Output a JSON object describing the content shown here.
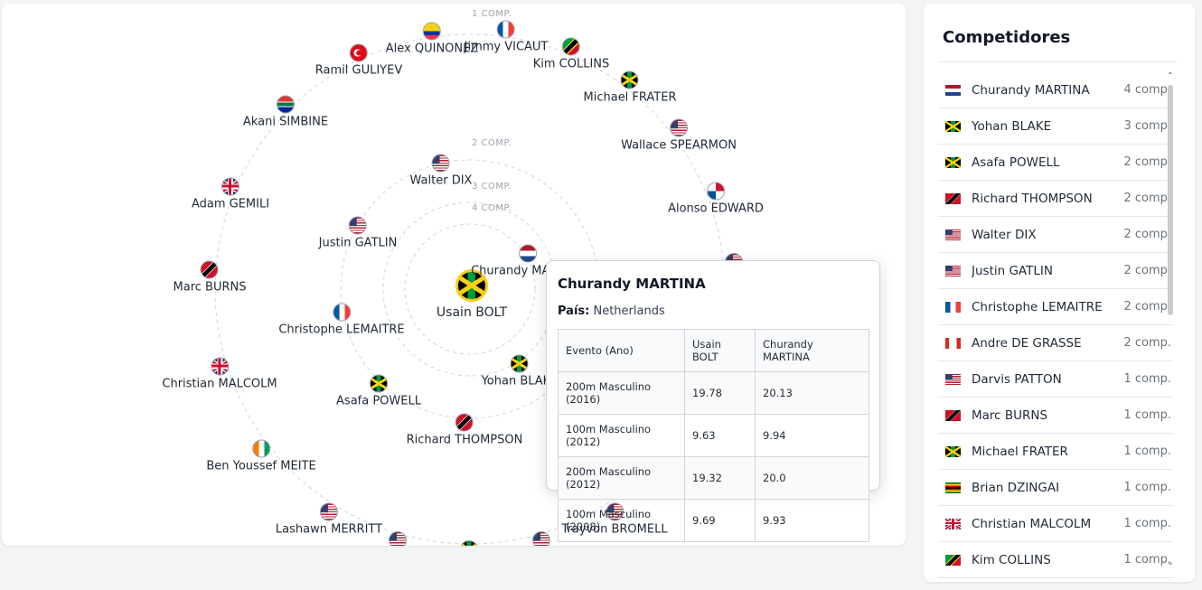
{
  "graph": {
    "rings": [
      "1 COMP.",
      "2 COMP.",
      "3 COMP.",
      "4 COMP."
    ],
    "center": {
      "name": "Usain BOLT",
      "country": "JAM"
    },
    "nodes": [
      {
        "name": "Churandy MARTINA",
        "country": "NED"
      },
      {
        "name": "Yohan BLAKE",
        "country": "JAM"
      },
      {
        "name": "Asafa POWELL",
        "country": "JAM"
      },
      {
        "name": "Richard THOMPSON",
        "country": "TTO"
      },
      {
        "name": "Walter DIX",
        "country": "USA"
      },
      {
        "name": "Justin GATLIN",
        "country": "USA"
      },
      {
        "name": "Christophe LEMAITRE",
        "country": "FRA"
      },
      {
        "name": "Alex QUINONEZ",
        "country": "ECU"
      },
      {
        "name": "Jimmy VICAUT",
        "country": "FRA"
      },
      {
        "name": "Kim COLLINS",
        "country": "SKN"
      },
      {
        "name": "Michael FRATER",
        "country": "JAM"
      },
      {
        "name": "Wallace SPEARMON",
        "country": "USA"
      },
      {
        "name": "Alonso EDWARD",
        "country": "PAN"
      },
      {
        "name": "Ramil GULIYEV",
        "country": "TUR"
      },
      {
        "name": "Akani SIMBINE",
        "country": "RSA"
      },
      {
        "name": "Adam GEMILI",
        "country": "GBR"
      },
      {
        "name": "Marc BURNS",
        "country": "TTO"
      },
      {
        "name": "Christian MALCOLM",
        "country": "GBR"
      },
      {
        "name": "Ben Youssef MEITE",
        "country": "CIV"
      },
      {
        "name": "Lashawn MERRITT",
        "country": "USA"
      },
      {
        "name": "Trayvon BROMELL",
        "country": "USA"
      },
      {
        "name": "",
        "country": "USA"
      },
      {
        "name": "",
        "country": "USA"
      },
      {
        "name": "",
        "country": "JAM"
      },
      {
        "name": "",
        "country": "USA"
      }
    ]
  },
  "tooltip": {
    "title": "Churandy MARTINA",
    "country_label": "País:",
    "country_value": "Netherlands",
    "headers": [
      "Evento (Ano)",
      "Usain BOLT",
      "Churandy MARTINA"
    ],
    "rows": [
      [
        "200m Masculino (2016)",
        "19.78",
        "20.13"
      ],
      [
        "100m Masculino (2012)",
        "9.63",
        "9.94"
      ],
      [
        "200m Masculino (2012)",
        "19.32",
        "20.0"
      ],
      [
        "100m Masculino (2008)",
        "9.69",
        "9.93"
      ]
    ]
  },
  "sidebar": {
    "title": "Competidores",
    "items": [
      {
        "name": "Churandy MARTINA",
        "count": "4 comp.",
        "country": "NED"
      },
      {
        "name": "Yohan BLAKE",
        "count": "3 comp.",
        "country": "JAM"
      },
      {
        "name": "Asafa POWELL",
        "count": "2 comp.",
        "country": "JAM"
      },
      {
        "name": "Richard THOMPSON",
        "count": "2 comp.",
        "country": "TTO"
      },
      {
        "name": "Walter DIX",
        "count": "2 comp.",
        "country": "USA"
      },
      {
        "name": "Justin GATLIN",
        "count": "2 comp.",
        "country": "USA"
      },
      {
        "name": "Christophe LEMAITRE",
        "count": "2 comp.",
        "country": "FRA"
      },
      {
        "name": "Andre DE GRASSE",
        "count": "2 comp.",
        "country": "CAN"
      },
      {
        "name": "Darvis PATTON",
        "count": "1 comp.",
        "country": "USA"
      },
      {
        "name": "Marc BURNS",
        "count": "1 comp.",
        "country": "TTO"
      },
      {
        "name": "Michael FRATER",
        "count": "1 comp.",
        "country": "JAM"
      },
      {
        "name": "Brian DZINGAI",
        "count": "1 comp.",
        "country": "ZIM"
      },
      {
        "name": "Christian MALCOLM",
        "count": "1 comp.",
        "country": "GBR"
      },
      {
        "name": "Kim COLLINS",
        "count": "1 comp.",
        "country": "SKN"
      }
    ]
  },
  "colors": {
    "accent_ring": "#facc15",
    "ring_stroke": "#d1d5db",
    "text": "#1f2937",
    "muted": "#6b7280"
  }
}
